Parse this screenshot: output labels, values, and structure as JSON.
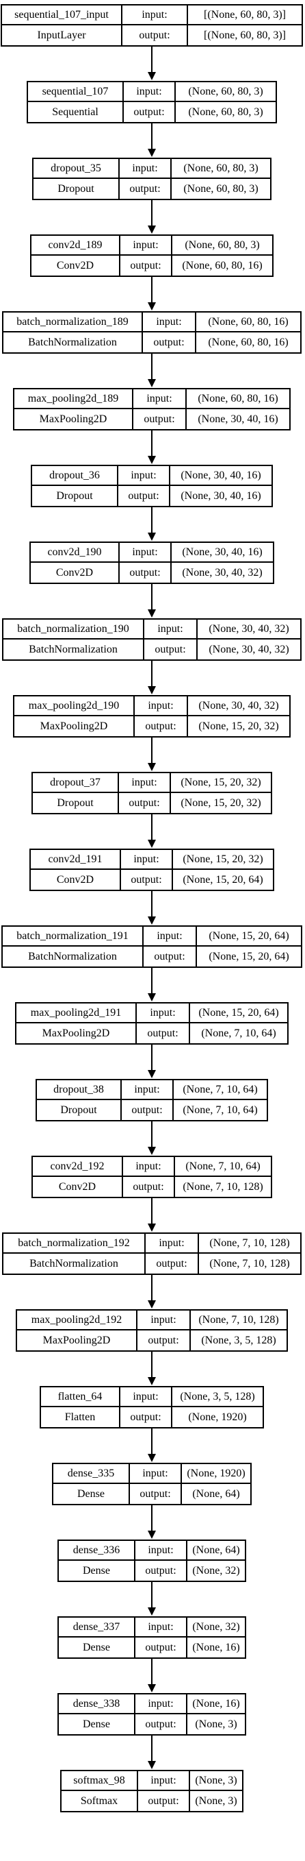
{
  "diagram": {
    "input_label": "input:",
    "output_label": "output:",
    "nodes": [
      {
        "name": "sequential_107_input",
        "cls": "InputLayer",
        "input": "[(None, 60, 80, 3)]",
        "output": "[(None, 60, 80, 3)]"
      },
      {
        "name": "sequential_107",
        "cls": "Sequential",
        "input": "(None, 60, 80, 3)",
        "output": "(None, 60, 80, 3)"
      },
      {
        "name": "dropout_35",
        "cls": "Dropout",
        "input": "(None, 60, 80, 3)",
        "output": "(None, 60, 80, 3)"
      },
      {
        "name": "conv2d_189",
        "cls": "Conv2D",
        "input": "(None, 60, 80, 3)",
        "output": "(None, 60, 80, 16)"
      },
      {
        "name": "batch_normalization_189",
        "cls": "BatchNormalization",
        "input": "(None, 60, 80, 16)",
        "output": "(None, 60, 80, 16)"
      },
      {
        "name": "max_pooling2d_189",
        "cls": "MaxPooling2D",
        "input": "(None, 60, 80, 16)",
        "output": "(None, 30, 40, 16)"
      },
      {
        "name": "dropout_36",
        "cls": "Dropout",
        "input": "(None, 30, 40, 16)",
        "output": "(None, 30, 40, 16)"
      },
      {
        "name": "conv2d_190",
        "cls": "Conv2D",
        "input": "(None, 30, 40, 16)",
        "output": "(None, 30, 40, 32)"
      },
      {
        "name": "batch_normalization_190",
        "cls": "BatchNormalization",
        "input": "(None, 30, 40, 32)",
        "output": "(None, 30, 40, 32)"
      },
      {
        "name": "max_pooling2d_190",
        "cls": "MaxPooling2D",
        "input": "(None, 30, 40, 32)",
        "output": "(None, 15, 20, 32)"
      },
      {
        "name": "dropout_37",
        "cls": "Dropout",
        "input": "(None, 15, 20, 32)",
        "output": "(None, 15, 20, 32)"
      },
      {
        "name": "conv2d_191",
        "cls": "Conv2D",
        "input": "(None, 15, 20, 32)",
        "output": "(None, 15, 20, 64)"
      },
      {
        "name": "batch_normalization_191",
        "cls": "BatchNormalization",
        "input": "(None, 15, 20, 64)",
        "output": "(None, 15, 20, 64)"
      },
      {
        "name": "max_pooling2d_191",
        "cls": "MaxPooling2D",
        "input": "(None, 15, 20, 64)",
        "output": "(None, 7, 10, 64)"
      },
      {
        "name": "dropout_38",
        "cls": "Dropout",
        "input": "(None, 7, 10, 64)",
        "output": "(None, 7, 10, 64)"
      },
      {
        "name": "conv2d_192",
        "cls": "Conv2D",
        "input": "(None, 7, 10, 64)",
        "output": "(None, 7, 10, 128)"
      },
      {
        "name": "batch_normalization_192",
        "cls": "BatchNormalization",
        "input": "(None, 7, 10, 128)",
        "output": "(None, 7, 10, 128)"
      },
      {
        "name": "max_pooling2d_192",
        "cls": "MaxPooling2D",
        "input": "(None, 7, 10, 128)",
        "output": "(None, 3, 5, 128)"
      },
      {
        "name": "flatten_64",
        "cls": "Flatten",
        "input": "(None, 3, 5, 128)",
        "output": "(None, 1920)"
      },
      {
        "name": "dense_335",
        "cls": "Dense",
        "input": "(None, 1920)",
        "output": "(None, 64)"
      },
      {
        "name": "dense_336",
        "cls": "Dense",
        "input": "(None, 64)",
        "output": "(None, 32)"
      },
      {
        "name": "dense_337",
        "cls": "Dense",
        "input": "(None, 32)",
        "output": "(None, 16)"
      },
      {
        "name": "dense_338",
        "cls": "Dense",
        "input": "(None, 16)",
        "output": "(None, 3)"
      },
      {
        "name": "softmax_98",
        "cls": "Softmax",
        "input": "(None, 3)",
        "output": "(None, 3)"
      }
    ]
  }
}
